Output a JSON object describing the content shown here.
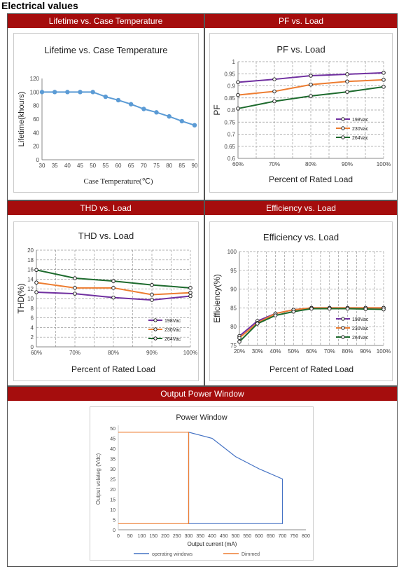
{
  "section_title": "Electrical values",
  "panels": {
    "lifetime": "Lifetime vs. Case Temperature",
    "pf": "PF vs. Load",
    "thd": "THD vs. Load",
    "eff": "Efficiency vs. Load",
    "window": "Output Power Window"
  },
  "chart_data": [
    {
      "id": "lifetime",
      "type": "line",
      "title": "Lifetime vs. Case Temperature",
      "xlabel": "Case Temperature(℃)",
      "ylabel": "Lifetime(khours)",
      "x": [
        "30",
        "35",
        "40",
        "45",
        "50",
        "55",
        "60",
        "65",
        "70",
        "75",
        "80",
        "85",
        "90"
      ],
      "yticks": [
        "0",
        "20",
        "40",
        "60",
        "80",
        "100",
        "120"
      ],
      "ylim": [
        0,
        120
      ],
      "grid": false,
      "series": [
        {
          "values": [
            100,
            100,
            100,
            100,
            100,
            93,
            88,
            82,
            75,
            70,
            64,
            57,
            51
          ],
          "color": "#5b9bd5"
        }
      ]
    },
    {
      "id": "pf",
      "type": "line",
      "title": "PF vs. Load",
      "xlabel": "Percent of Rated Load",
      "ylabel": "PF",
      "x": [
        "60%",
        "70%",
        "80%",
        "90%",
        "100%"
      ],
      "yticks": [
        "0.6",
        "0.65",
        "0.7",
        "0.75",
        "0.8",
        "0.85",
        "0.9",
        "0.95",
        "1"
      ],
      "ylim": [
        0.6,
        1
      ],
      "grid": true,
      "legend": "bottom-right",
      "series": [
        {
          "name": "198Vac",
          "values": [
            0.915,
            0.927,
            0.942,
            0.948,
            0.954
          ],
          "color": "#7030a0"
        },
        {
          "name": "230Vac",
          "values": [
            0.862,
            0.877,
            0.905,
            0.918,
            0.925
          ],
          "color": "#ed7d31"
        },
        {
          "name": "264Vac",
          "values": [
            0.806,
            0.836,
            0.858,
            0.875,
            0.896
          ],
          "color": "#1e6b2e"
        }
      ]
    },
    {
      "id": "thd",
      "type": "line",
      "title": "THD vs. Load",
      "xlabel": "Percent of Rated Load",
      "ylabel": "THD(%)",
      "x": [
        "60%",
        "70%",
        "80%",
        "90%",
        "100%"
      ],
      "yticks": [
        "0",
        "2",
        "4",
        "6",
        "8",
        "10",
        "12",
        "14",
        "16",
        "18",
        "20"
      ],
      "ylim": [
        0,
        20
      ],
      "grid": true,
      "legend": "bottom-right",
      "series": [
        {
          "name": "198Vac",
          "values": [
            11.3,
            11.0,
            10.2,
            9.7,
            10.5
          ],
          "color": "#7030a0"
        },
        {
          "name": "230Vac",
          "values": [
            13.3,
            12.2,
            12.2,
            10.8,
            11.2
          ],
          "color": "#ed7d31"
        },
        {
          "name": "264Vac",
          "values": [
            15.9,
            14.2,
            13.6,
            12.8,
            12.2
          ],
          "color": "#1e6b2e"
        }
      ]
    },
    {
      "id": "eff",
      "type": "line",
      "title": "Efficiency vs. Load",
      "xlabel": "Percent of Rated Load",
      "ylabel": "Efficiency(%)",
      "x": [
        "20%",
        "30%",
        "40%",
        "50%",
        "60%",
        "70%",
        "80%",
        "90%",
        "100%"
      ],
      "yticks": [
        "75",
        "80",
        "85",
        "90",
        "95",
        "100"
      ],
      "ylim": [
        75,
        100
      ],
      "grid": true,
      "legend": "bottom-right",
      "series": [
        {
          "name": "198Vac",
          "values": [
            77.5,
            81.5,
            83.5,
            84.5,
            85,
            85,
            85,
            85,
            85
          ],
          "color": "#7030a0"
        },
        {
          "name": "230Vac",
          "values": [
            77,
            81,
            83.5,
            84.5,
            85,
            85,
            85,
            85,
            85
          ],
          "color": "#ed7d31"
        },
        {
          "name": "264Vac",
          "values": [
            76,
            80.8,
            83,
            84,
            84.8,
            84.8,
            84.8,
            84.7,
            84.6
          ],
          "color": "#1e6b2e"
        }
      ]
    },
    {
      "id": "window",
      "type": "line",
      "title": "Power Window",
      "xlabel": "Output current (mA)",
      "ylabel": "Output volateg (Vdc)",
      "xlim": [
        0,
        800
      ],
      "ylim": [
        0,
        50
      ],
      "xticks": [
        "0",
        "50",
        "100",
        "150",
        "200",
        "250",
        "300",
        "350",
        "400",
        "450",
        "500",
        "550",
        "600",
        "650",
        "700",
        "750",
        "800"
      ],
      "yticks": [
        "0",
        "5",
        "10",
        "15",
        "20",
        "25",
        "30",
        "35",
        "40",
        "45",
        "50"
      ],
      "grid": false,
      "legend": "bottom",
      "series": [
        {
          "name": "operating windows",
          "color": "#4472c4",
          "points": [
            [
              300,
              3
            ],
            [
              300,
              48
            ],
            [
              400,
              45
            ],
            [
              500,
              36
            ],
            [
              600,
              30
            ],
            [
              700,
              25
            ],
            [
              700,
              3
            ],
            [
              300,
              3
            ]
          ]
        },
        {
          "name": "Dimmed",
          "color": "#ed7d31",
          "points": [
            [
              0,
              3
            ],
            [
              300,
              3
            ],
            [
              300,
              48
            ],
            [
              0,
              48
            ]
          ]
        }
      ]
    }
  ]
}
